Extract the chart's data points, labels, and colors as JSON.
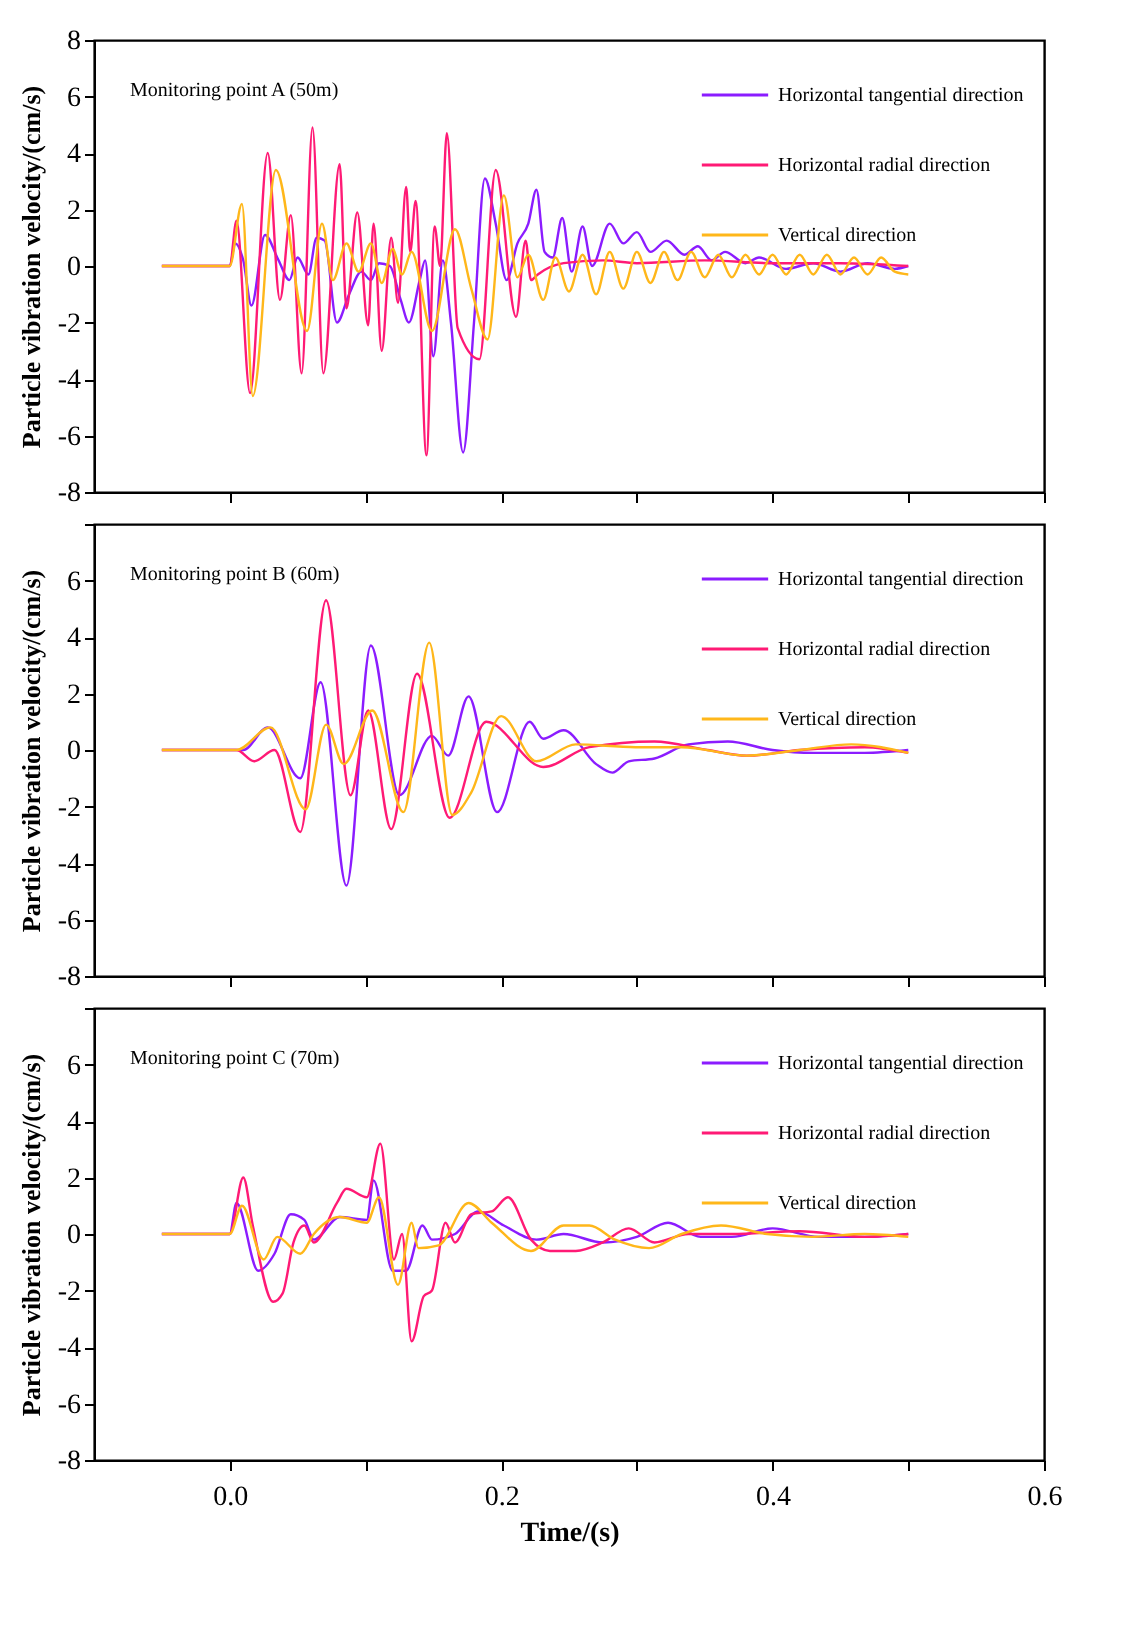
{
  "chart_data": [
    {
      "type": "line",
      "ylabel": "Particle vibration velocity/(cm/s)",
      "annotations": [
        "Monitoring point A (50m)"
      ],
      "legend": "top right",
      "tick_labels": "y",
      "xlim": [
        -0.1,
        0.6
      ],
      "xticks": [
        {
          "value": 0,
          "label": null
        },
        {
          "value": 0.1,
          "label": null
        },
        {
          "value": 0.2,
          "label": null
        },
        {
          "value": 0.3,
          "label": null
        },
        {
          "value": 0.4,
          "label": null
        },
        {
          "value": 0.5,
          "label": null
        },
        {
          "value": 0.6,
          "label": null
        }
      ],
      "ylim": [
        -8,
        8
      ],
      "yticks": [
        -8,
        -6,
        -4,
        -2,
        0,
        2,
        4,
        6,
        8
      ],
      "series": [
        {
          "name": "Horizontal tangential direction",
          "color": "#8b1cff",
          "x": [
            -0.05,
            0,
            0.004,
            0.01,
            0.016,
            0.026,
            0.036,
            0.044,
            0.05,
            0.058,
            0.064,
            0.07,
            0.079,
            0.088,
            0.097,
            0.104,
            0.11,
            0.118,
            0.126,
            0.132,
            0.14,
            0.144,
            0.15,
            0.157,
            0.163,
            0.172,
            0.18,
            0.188,
            0.196,
            0.204,
            0.212,
            0.22,
            0.226,
            0.232,
            0.238,
            0.245,
            0.252,
            0.26,
            0.267,
            0.28,
            0.29,
            0.3,
            0.31,
            0.322,
            0.335,
            0.345,
            0.355,
            0.365,
            0.38,
            0.39,
            0.41,
            0.43,
            0.45,
            0.47,
            0.49,
            0.5
          ],
          "values": [
            0,
            0,
            0.8,
            0.2,
            -1.4,
            1.1,
            0.2,
            -0.5,
            0.3,
            -0.3,
            1.0,
            0.9,
            -2.0,
            -1.0,
            -0.2,
            -0.5,
            0.1,
            0.0,
            -1.2,
            -2.0,
            -0.5,
            0.2,
            -3.2,
            0.2,
            -2.0,
            -6.6,
            -2.0,
            3.1,
            1.5,
            -0.5,
            0.8,
            1.5,
            2.7,
            0.5,
            0.3,
            1.7,
            -0.2,
            1.4,
            0,
            1.5,
            0.8,
            1.2,
            0.5,
            0.9,
            0.4,
            0.7,
            0.2,
            0.5,
            0.1,
            0.3,
            -0.1,
            0.1,
            -0.2,
            0.1,
            -0.1,
            0
          ]
        },
        {
          "name": "Horizontal radial direction",
          "color": "#ff1a75",
          "x": [
            -0.05,
            0,
            0.005,
            0.015,
            0.028,
            0.037,
            0.045,
            0.053,
            0.061,
            0.069,
            0.081,
            0.086,
            0.094,
            0.102,
            0.106,
            0.112,
            0.119,
            0.124,
            0.13,
            0.133,
            0.137,
            0.145,
            0.151,
            0.155,
            0.16,
            0.168,
            0.184,
            0.196,
            0.211,
            0.218,
            0.222,
            0.227,
            0.246,
            0.275,
            0.3,
            0.35,
            0.4,
            0.45,
            0.5
          ],
          "values": [
            0,
            0,
            1.6,
            -4.5,
            4.0,
            -1.2,
            1.8,
            -3.8,
            4.9,
            -3.8,
            3.6,
            -1.5,
            1.9,
            -2.1,
            1.5,
            -3.0,
            1.0,
            -1.3,
            2.8,
            0.5,
            2.3,
            -6.7,
            1.4,
            0,
            4.7,
            -2.2,
            -3.3,
            3.4,
            -1.8,
            0.9,
            -0.5,
            -0.3,
            0.1,
            0.2,
            0.1,
            0.2,
            0.1,
            0.1,
            0
          ]
        },
        {
          "name": "Vertical direction",
          "color": "#ffb71a",
          "x": [
            -0.05,
            0,
            0.009,
            0.017,
            0.034,
            0.057,
            0.068,
            0.076,
            0.086,
            0.095,
            0.104,
            0.112,
            0.12,
            0.127,
            0.134,
            0.149,
            0.166,
            0.178,
            0.19,
            0.202,
            0.212,
            0.22,
            0.231,
            0.24,
            0.25,
            0.26,
            0.27,
            0.28,
            0.29,
            0.3,
            0.31,
            0.32,
            0.33,
            0.34,
            0.35,
            0.36,
            0.37,
            0.38,
            0.39,
            0.4,
            0.41,
            0.42,
            0.43,
            0.44,
            0.45,
            0.46,
            0.47,
            0.48,
            0.49,
            0.5
          ],
          "values": [
            0,
            0,
            2.2,
            -4.6,
            3.4,
            -2.3,
            1.5,
            -0.5,
            0.8,
            -0.2,
            0.8,
            -0.6,
            0.6,
            -0.3,
            0.5,
            -2.3,
            1.3,
            -0.8,
            -2.6,
            2.5,
            -0.4,
            0.4,
            -1.2,
            0.3,
            -0.9,
            0.4,
            -1.0,
            0.5,
            -0.8,
            0.5,
            -0.6,
            0.5,
            -0.5,
            0.5,
            -0.4,
            0.4,
            -0.4,
            0.4,
            -0.3,
            0.4,
            -0.3,
            0.4,
            -0.3,
            0.4,
            -0.3,
            0.3,
            -0.3,
            0.3,
            -0.2,
            -0.3
          ]
        }
      ]
    },
    {
      "type": "line",
      "ylabel": "Particle vibration velocity/(cm/s)",
      "annotations": [
        "Monitoring point B (60m)"
      ],
      "legend": "top right",
      "tick_labels": "y",
      "xlim": [
        -0.1,
        0.6
      ],
      "xticks": [
        {
          "value": 0,
          "label": null
        },
        {
          "value": 0.1,
          "label": null
        },
        {
          "value": 0.2,
          "label": null
        },
        {
          "value": 0.3,
          "label": null
        },
        {
          "value": 0.4,
          "label": null
        },
        {
          "value": 0.5,
          "label": null
        },
        {
          "value": 0.6,
          "label": null
        }
      ],
      "ylim": [
        -8,
        8
      ],
      "yticks": [
        -8,
        -6,
        -4,
        -2,
        0,
        2,
        4,
        6,
        {
          "value": 8,
          "label": null
        }
      ],
      "series": [
        {
          "name": "Horizontal tangential direction",
          "color": "#8b1cff",
          "x": [
            -0.05,
            0,
            0.01,
            0.028,
            0.052,
            0.067,
            0.086,
            0.104,
            0.125,
            0.149,
            0.161,
            0.176,
            0.197,
            0.221,
            0.231,
            0.246,
            0.27,
            0.282,
            0.294,
            0.313,
            0.338,
            0.367,
            0.4,
            0.43,
            0.468,
            0.5
          ],
          "values": [
            0,
            0,
            0,
            0.8,
            -1.0,
            2.4,
            -4.8,
            3.7,
            -1.6,
            0.5,
            -0.2,
            1.9,
            -2.2,
            1.0,
            0.4,
            0.7,
            -0.5,
            -0.8,
            -0.4,
            -0.3,
            0.2,
            0.3,
            0,
            -0.1,
            -0.1,
            0
          ]
        },
        {
          "name": "Horizontal radial direction",
          "color": "#ff1a75",
          "x": [
            -0.05,
            0,
            0.005,
            0.018,
            0.033,
            0.052,
            0.071,
            0.089,
            0.102,
            0.119,
            0.138,
            0.162,
            0.189,
            0.231,
            0.265,
            0.313,
            0.352,
            0.381,
            0.42,
            0.468,
            0.5
          ],
          "values": [
            0,
            0,
            0,
            -0.4,
            0,
            -2.9,
            5.3,
            -1.6,
            1.4,
            -2.8,
            2.7,
            -2.4,
            1.0,
            -0.6,
            0.1,
            0.3,
            0,
            -0.2,
            0,
            0.1,
            -0.1
          ]
        },
        {
          "name": "Vertical direction",
          "color": "#ffb71a",
          "x": [
            -0.05,
            0,
            0.005,
            0.03,
            0.056,
            0.071,
            0.084,
            0.105,
            0.128,
            0.147,
            0.164,
            0.178,
            0.2,
            0.226,
            0.255,
            0.299,
            0.333,
            0.381,
            0.42,
            0.458,
            0.5
          ],
          "values": [
            0,
            0,
            0,
            0.8,
            -2.1,
            0.9,
            -0.5,
            1.4,
            -2.2,
            3.8,
            -2.3,
            -1.5,
            1.2,
            -0.4,
            0.2,
            0.1,
            0.1,
            -0.2,
            0,
            0.2,
            -0.1
          ]
        }
      ]
    },
    {
      "type": "line",
      "ylabel": "Particle vibration velocity/(cm/s)",
      "xlabel": "Time/(s)",
      "annotations": [
        "Monitoring point C (70m)"
      ],
      "legend": "top right",
      "xlim": [
        -0.1,
        0.6
      ],
      "xticks": [
        {
          "value": 0,
          "label": "0.0"
        },
        {
          "value": 0.1,
          "label": null
        },
        {
          "value": 0.2,
          "label": "0.2"
        },
        {
          "value": 0.3,
          "label": null
        },
        {
          "value": 0.4,
          "label": "0.4"
        },
        {
          "value": 0.5,
          "label": null
        },
        {
          "value": 0.6,
          "label": "0.6"
        }
      ],
      "ylim": [
        -8,
        8
      ],
      "yticks": [
        -8,
        -6,
        -4,
        -2,
        0,
        2,
        4,
        6,
        {
          "value": 8,
          "label": null
        }
      ],
      "series": [
        {
          "name": "Horizontal tangential direction",
          "color": "#8b1cff",
          "x": [
            -0.05,
            0,
            0.005,
            0.021,
            0.033,
            0.045,
            0.055,
            0.062,
            0.081,
            0.101,
            0.106,
            0.12,
            0.13,
            0.142,
            0.149,
            0.166,
            0.183,
            0.202,
            0.226,
            0.246,
            0.275,
            0.3,
            0.323,
            0.347,
            0.37,
            0.4,
            0.434,
            0.468,
            0.5
          ],
          "values": [
            0,
            0,
            1.1,
            -1.3,
            -0.7,
            0.7,
            0.5,
            -0.2,
            0.6,
            0.5,
            1.9,
            -1.3,
            -1.3,
            0.3,
            -0.2,
            0,
            0.8,
            0.3,
            -0.2,
            0,
            -0.3,
            -0.1,
            0.4,
            -0.1,
            -0.1,
            0.2,
            -0.1,
            -0.1,
            0
          ]
        },
        {
          "name": "Horizontal radial direction",
          "color": "#ff1a75",
          "x": [
            -0.05,
            0,
            0.01,
            0.017,
            0.032,
            0.039,
            0.047,
            0.055,
            0.062,
            0.079,
            0.086,
            0.101,
            0.111,
            0.121,
            0.127,
            0.134,
            0.143,
            0.149,
            0.159,
            0.166,
            0.178,
            0.193,
            0.205,
            0.222,
            0.236,
            0.255,
            0.275,
            0.294,
            0.313,
            0.338,
            0.37,
            0.42,
            0.468,
            0.5
          ],
          "values": [
            0,
            0,
            2.0,
            0.3,
            -2.4,
            -2.1,
            -0.3,
            0.3,
            -0.3,
            1.1,
            1.6,
            1.3,
            3.2,
            -0.9,
            0,
            -3.8,
            -2.2,
            -2.0,
            0.4,
            -0.3,
            0.7,
            0.8,
            1.3,
            -0.2,
            -0.6,
            -0.6,
            -0.3,
            0.2,
            -0.3,
            0,
            0,
            0.1,
            -0.1,
            0
          ]
        },
        {
          "name": "Vertical direction",
          "color": "#ffb71a",
          "x": [
            -0.05,
            0,
            0.009,
            0.025,
            0.035,
            0.052,
            0.062,
            0.081,
            0.101,
            0.11,
            0.124,
            0.134,
            0.139,
            0.154,
            0.176,
            0.193,
            0.222,
            0.246,
            0.265,
            0.284,
            0.309,
            0.333,
            0.362,
            0.396,
            0.43,
            0.468,
            0.5
          ],
          "values": [
            0,
            0,
            1.0,
            -0.9,
            -0.1,
            -0.7,
            0,
            0.6,
            0.4,
            1.3,
            -1.8,
            0.4,
            -0.5,
            -0.4,
            1.1,
            0.4,
            -0.6,
            0.3,
            0.3,
            -0.2,
            -0.5,
            0,
            0.3,
            0,
            -0.1,
            0,
            -0.1
          ]
        }
      ]
    }
  ]
}
